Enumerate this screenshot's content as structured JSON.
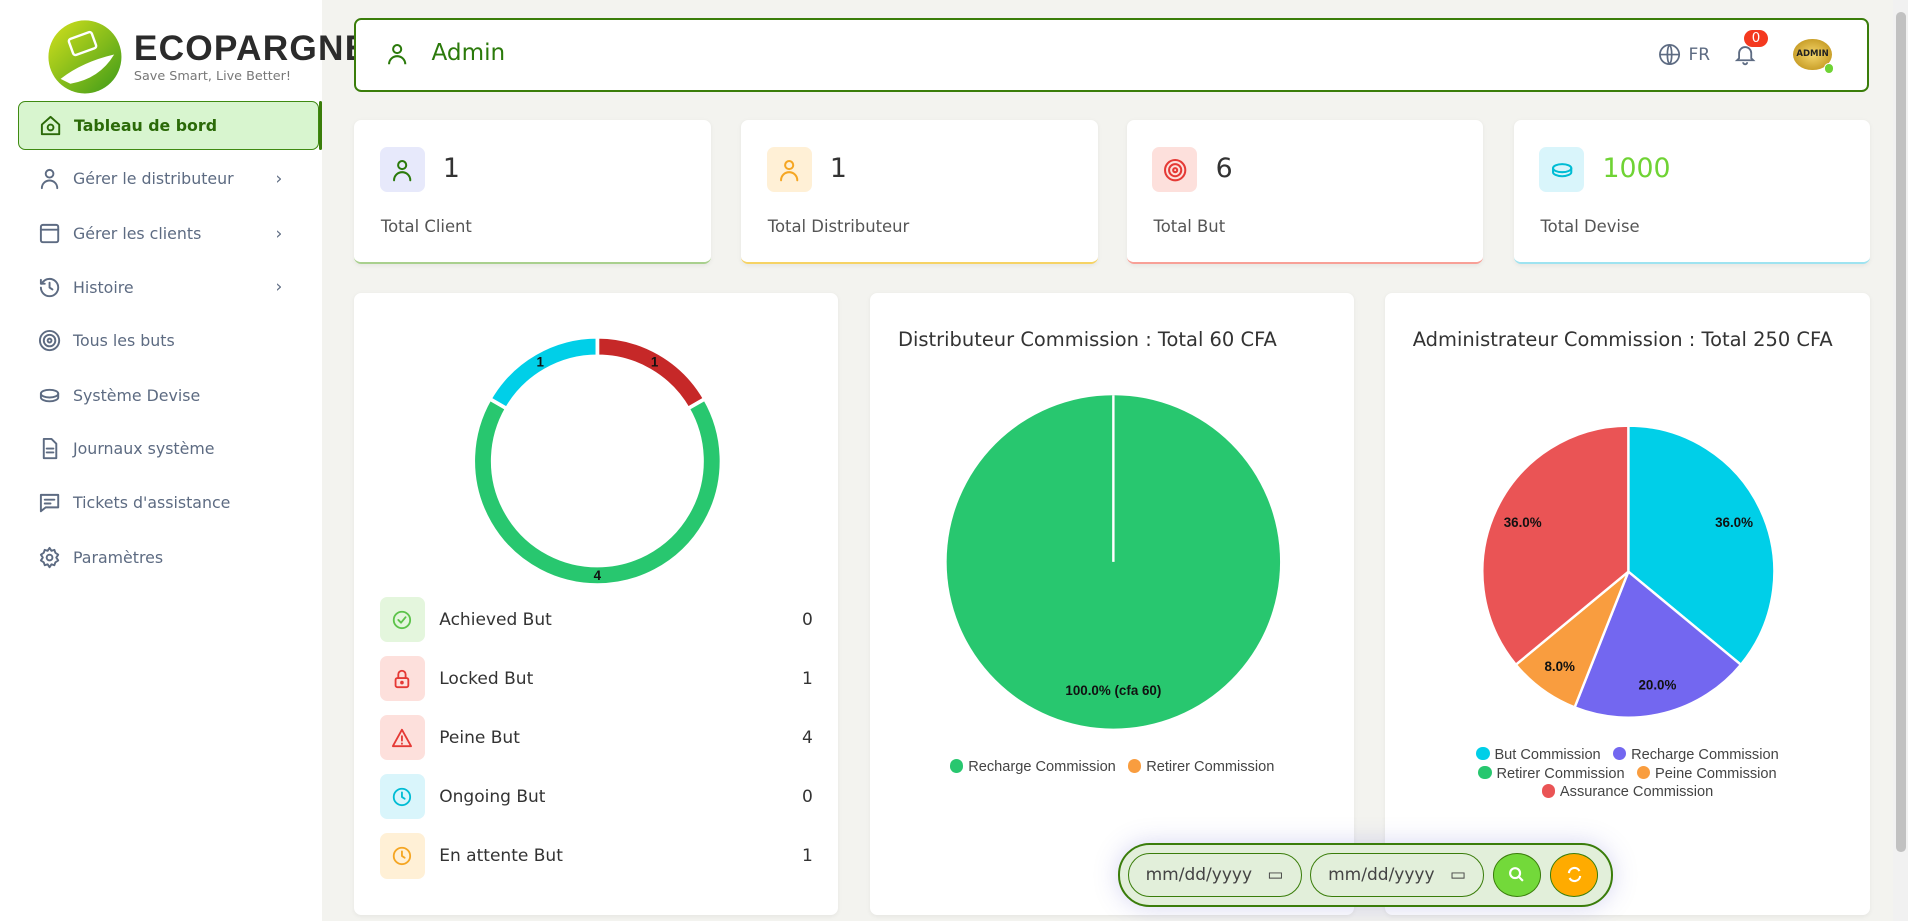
{
  "brand": {
    "name": "ECOPARGNE",
    "tagline": "Save Smart, Live Better!"
  },
  "sidebar": {
    "items": [
      {
        "label": "Tableau de bord",
        "icon": "home-icon",
        "active": true
      },
      {
        "label": "Gérer le distributeur",
        "icon": "user-icon",
        "chevron": true
      },
      {
        "label": "Gérer les clients",
        "icon": "window-icon",
        "chevron": true
      },
      {
        "label": "Histoire",
        "icon": "history-icon",
        "chevron": true
      },
      {
        "label": "Tous les buts",
        "icon": "target-icon"
      },
      {
        "label": "Système Devise",
        "icon": "coin-icon"
      },
      {
        "label": "Journaux système",
        "icon": "document-icon"
      },
      {
        "label": "Tickets d'assistance",
        "icon": "message-icon"
      },
      {
        "label": "Paramètres",
        "icon": "gear-icon"
      }
    ]
  },
  "header": {
    "title": "Admin",
    "lang": "FR",
    "notifications": "0",
    "avatar": "ADMIN"
  },
  "stats": [
    {
      "value": "1",
      "label": "Total Client",
      "color": "#2b7a0b",
      "bg": "#e7e9fb",
      "border": "#a9d08e"
    },
    {
      "value": "1",
      "label": "Total Distributeur",
      "color": "#f5a623",
      "bg": "#fff0d6",
      "border": "#f6d365"
    },
    {
      "value": "6",
      "label": "Total But",
      "color": "#e53935",
      "bg": "#fde0dc",
      "border": "#f8a097"
    },
    {
      "value": "1000",
      "label": "Total Devise",
      "color": "#00bcd4",
      "bg": "#d9f5fb",
      "border": "#9ee3f0",
      "valueColor": "#6fd334"
    }
  ],
  "goals": {
    "chart_data": {
      "type": "donut",
      "values": [
        1,
        4,
        1
      ],
      "colors": [
        "#c62828",
        "#28c76f",
        "#00cfe8"
      ]
    },
    "items": [
      {
        "label": "Achieved But",
        "value": "0",
        "icon": "check-circle-icon",
        "color": "#5cc34a",
        "bg": "#e4f6dd"
      },
      {
        "label": "Locked But",
        "value": "1",
        "icon": "lock-icon",
        "color": "#e53935",
        "bg": "#fde0dc"
      },
      {
        "label": "Peine But",
        "value": "4",
        "icon": "warning-icon",
        "color": "#e53935",
        "bg": "#fde0dc"
      },
      {
        "label": "Ongoing But",
        "value": "0",
        "icon": "clock-icon",
        "color": "#00bcd4",
        "bg": "#d9f5fb"
      },
      {
        "label": "En attente But",
        "value": "1",
        "icon": "clock-icon",
        "color": "#f5a623",
        "bg": "#fff0d6"
      }
    ]
  },
  "dist": {
    "title": "Distributeur Commission : Total 60 CFA",
    "chart_data": {
      "type": "pie",
      "series": [
        {
          "name": "Recharge Commission",
          "value": 60,
          "label": "100.0% (cfa 60)",
          "color": "#28c76f"
        },
        {
          "name": "Retirer Commission",
          "value": 0,
          "color": "#f99d3f"
        }
      ]
    }
  },
  "admin": {
    "title": "Administrateur Commission : Total 250 CFA",
    "chart_data": {
      "type": "pie",
      "series": [
        {
          "name": "But Commission",
          "value": 36,
          "label": "36.0%",
          "color": "#00cfe8"
        },
        {
          "name": "Recharge Commission",
          "value": 20,
          "label": "20.0%",
          "color": "#7367f0"
        },
        {
          "name": "Retirer Commission",
          "value": 0,
          "color": "#28c76f"
        },
        {
          "name": "Peine Commission",
          "value": 8,
          "label": "8.0%",
          "color": "#f99d3f"
        },
        {
          "name": "Assurance Commission",
          "value": 36,
          "label": "36.0%",
          "color": "#ea5455"
        }
      ]
    }
  },
  "filter": {
    "from": "mm/dd/yyyy",
    "to": "mm/dd/yyyy"
  }
}
